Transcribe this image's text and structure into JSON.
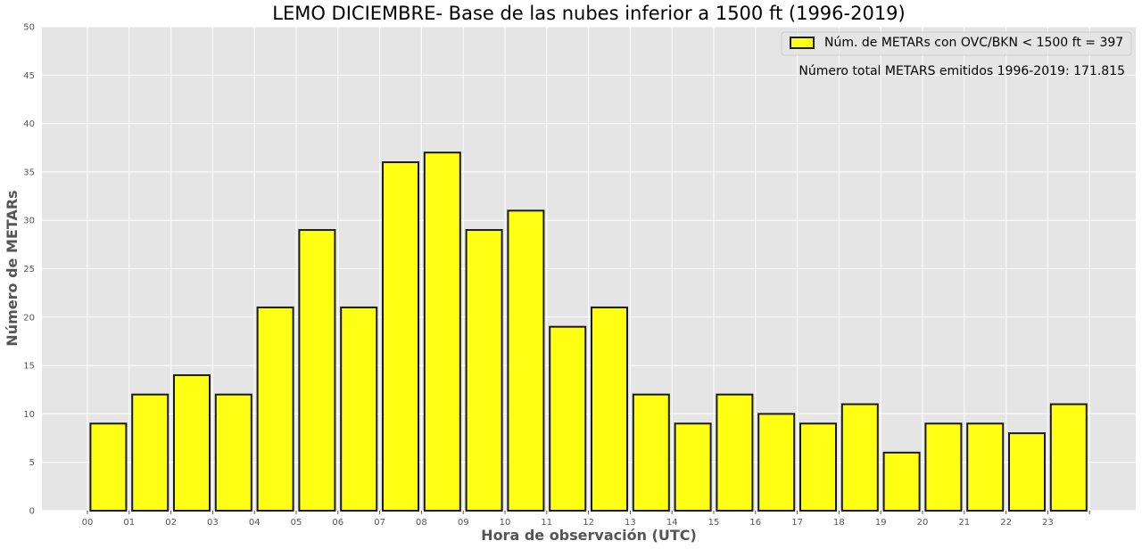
{
  "chart_data": {
    "type": "bar",
    "title": "LEMO DICIEMBRE- Base de las nubes inferior a 1500 ft (1996-2019)",
    "xlabel": "Hora de observación (UTC)",
    "ylabel": "Número de METARs",
    "categories": [
      "00",
      "01",
      "02",
      "03",
      "04",
      "05",
      "06",
      "07",
      "08",
      "09",
      "10",
      "11",
      "12",
      "13",
      "14",
      "15",
      "16",
      "17",
      "18",
      "19",
      "20",
      "21",
      "22",
      "23"
    ],
    "values": [
      9,
      12,
      14,
      12,
      21,
      29,
      21,
      36,
      37,
      29,
      31,
      19,
      21,
      12,
      9,
      12,
      10,
      9,
      11,
      6,
      9,
      9,
      8,
      11
    ],
    "ylim": [
      0,
      50
    ],
    "yticks": [
      0,
      5,
      10,
      15,
      20,
      25,
      30,
      35,
      40,
      45,
      50
    ],
    "grid": true,
    "legend": {
      "position": "top-right",
      "label": "Núm. de METARs con OVC/BKN < 1500 ft = 397"
    },
    "annotation": "Número total METARS emitidos 1996-2019: 171.815",
    "colors": {
      "bar_fill": "#ffff14",
      "bar_edge": "#1a1a1a",
      "plot_background": "#e5e5e5",
      "grid": "#ffffff"
    }
  }
}
